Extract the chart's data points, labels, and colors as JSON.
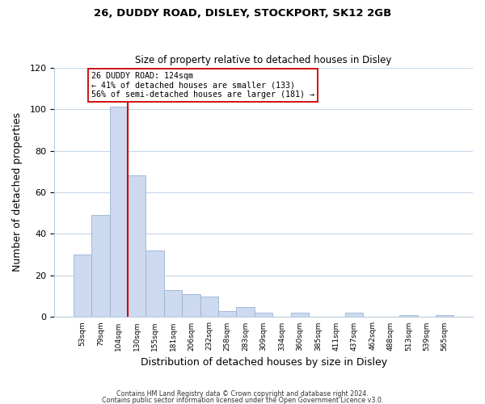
{
  "title": "26, DUDDY ROAD, DISLEY, STOCKPORT, SK12 2GB",
  "subtitle": "Size of property relative to detached houses in Disley",
  "xlabel": "Distribution of detached houses by size in Disley",
  "ylabel": "Number of detached properties",
  "bar_labels": [
    "53sqm",
    "79sqm",
    "104sqm",
    "130sqm",
    "155sqm",
    "181sqm",
    "206sqm",
    "232sqm",
    "258sqm",
    "283sqm",
    "309sqm",
    "334sqm",
    "360sqm",
    "385sqm",
    "411sqm",
    "437sqm",
    "462sqm",
    "488sqm",
    "513sqm",
    "539sqm",
    "565sqm"
  ],
  "bar_heights": [
    30,
    49,
    101,
    68,
    32,
    13,
    11,
    10,
    3,
    5,
    2,
    0,
    2,
    0,
    0,
    2,
    0,
    0,
    1,
    0,
    1
  ],
  "bar_color": "#ccd9ee",
  "bar_edge_color": "#9ab3d5",
  "vline_x_index": 2,
  "vline_color": "#cc0000",
  "annotation_line1": "26 DUDDY ROAD: 124sqm",
  "annotation_line2": "← 41% of detached houses are smaller (133)",
  "annotation_line3": "56% of semi-detached houses are larger (181) →",
  "annotation_box_color": "#ffffff",
  "annotation_box_edge": "#cc0000",
  "ylim": [
    0,
    120
  ],
  "yticks": [
    0,
    20,
    40,
    60,
    80,
    100,
    120
  ],
  "footer_line1": "Contains HM Land Registry data © Crown copyright and database right 2024.",
  "footer_line2": "Contains public sector information licensed under the Open Government Licence v3.0.",
  "bg_color": "#ffffff",
  "grid_color": "#c8d8e8"
}
